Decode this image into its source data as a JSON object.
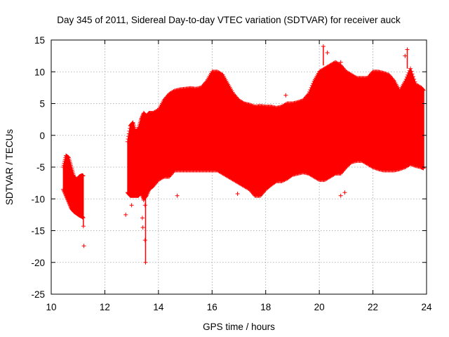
{
  "chart_data": {
    "type": "scatter",
    "title": "Day 345 of 2011, Sidereal Day-to-day VTEC variation (SDTVAR) for receiver auck",
    "xlabel": "GPS time / hours",
    "ylabel": "SDTVAR / TECUs",
    "xlim": [
      10,
      24
    ],
    "ylim": [
      -25,
      15
    ],
    "xticks": [
      10,
      12,
      14,
      16,
      18,
      20,
      22,
      24
    ],
    "yticks": [
      -25,
      -20,
      -15,
      -10,
      -5,
      0,
      5,
      10,
      15
    ],
    "xtick_labels": [
      "10",
      "12",
      "14",
      "16",
      "18",
      "20",
      "22",
      "24"
    ],
    "ytick_labels": [
      "-25",
      "-20",
      "-15",
      "-10",
      "-5",
      "0",
      "5",
      "10",
      "15"
    ],
    "grid": true,
    "marker": "+",
    "color": "#ff0000",
    "series": [
      {
        "name": "SDTVAR",
        "envelope": {
          "x": [
            10.45,
            10.55,
            10.65,
            10.75,
            10.85,
            10.95,
            11.05,
            11.15,
            11.2
          ],
          "upper": [
            -5.0,
            -3.2,
            -3.5,
            -5.0,
            -6.5,
            -7.0,
            -6.5,
            -6.3,
            -6.4
          ],
          "lower": [
            -8.5,
            -9.5,
            -10.5,
            -11.5,
            -12.0,
            -12.3,
            -12.6,
            -12.8,
            -13.0
          ]
        },
        "envelope2": {
          "x": [
            12.85,
            12.95,
            13.05,
            13.15,
            13.25,
            13.35,
            13.45,
            13.55,
            13.65,
            13.8,
            14.0,
            14.2,
            14.4,
            14.6,
            14.8,
            15.0,
            15.2,
            15.4,
            15.6,
            15.8,
            16.0,
            16.2,
            16.4,
            16.6,
            16.8,
            17.0,
            17.2,
            17.4,
            17.6,
            17.8,
            18.0,
            18.2,
            18.4,
            18.6,
            18.8,
            19.0,
            19.2,
            19.4,
            19.6,
            19.8,
            20.0,
            20.2,
            20.4,
            20.6,
            20.8,
            21.0,
            21.2,
            21.4,
            21.6,
            21.8,
            22.0,
            22.2,
            22.4,
            22.6,
            22.8,
            23.0,
            23.2,
            23.4,
            23.6,
            23.8,
            23.9
          ],
          "upper": [
            -1.0,
            1.5,
            2.0,
            0.5,
            1.0,
            2.5,
            3.5,
            3.0,
            3.5,
            3.5,
            4.0,
            5.5,
            6.5,
            7.0,
            7.2,
            7.3,
            7.4,
            7.3,
            7.5,
            8.5,
            10.0,
            10.0,
            9.5,
            8.0,
            6.5,
            5.5,
            5.0,
            4.8,
            4.5,
            4.6,
            4.5,
            4.5,
            4.3,
            4.5,
            5.0,
            5.0,
            5.2,
            5.5,
            6.5,
            8.5,
            10.0,
            10.5,
            11.0,
            11.5,
            11.0,
            10.0,
            9.5,
            9.0,
            9.0,
            9.0,
            10.0,
            10.0,
            9.8,
            9.5,
            8.5,
            7.0,
            8.5,
            10.5,
            8.0,
            7.5,
            7.0
          ],
          "lower": [
            -9.0,
            -9.5,
            -9.5,
            -9.5,
            -9.5,
            -9.0,
            -10.0,
            -9.5,
            -8.5,
            -8.0,
            -7.0,
            -6.5,
            -6.5,
            -5.5,
            -5.5,
            -5.5,
            -5.5,
            -5.5,
            -5.5,
            -5.5,
            -5.5,
            -5.5,
            -6.0,
            -6.5,
            -7.0,
            -7.5,
            -8.0,
            -8.5,
            -9.5,
            -9.5,
            -8.5,
            -7.8,
            -7.2,
            -7.2,
            -6.8,
            -6.2,
            -6.0,
            -5.8,
            -6.0,
            -6.5,
            -7.0,
            -7.0,
            -6.5,
            -6.0,
            -6.0,
            -5.0,
            -4.2,
            -4.0,
            -4.0,
            -4.5,
            -5.0,
            -5.3,
            -5.5,
            -5.5,
            -5.5,
            -5.3,
            -5.0,
            -4.5,
            -4.8,
            -5.0,
            -5.2
          ]
        },
        "outliers": [
          {
            "x": 11.22,
            "y": -17.4
          },
          {
            "x": 11.2,
            "y": -14.3
          },
          {
            "x": 12.78,
            "y": -12.5
          },
          {
            "x": 13.42,
            "y": -14.5
          },
          {
            "x": 13.52,
            "y": -20.0
          },
          {
            "x": 13.5,
            "y": -16.5
          },
          {
            "x": 13.45,
            "y": -10.2
          },
          {
            "x": 13.5,
            "y": -11.0
          },
          {
            "x": 14.7,
            "y": -9.5
          },
          {
            "x": 16.95,
            "y": -9.2
          },
          {
            "x": 18.75,
            "y": 6.3
          },
          {
            "x": 20.15,
            "y": 14.0
          },
          {
            "x": 20.3,
            "y": 13.0
          },
          {
            "x": 20.8,
            "y": 11.5
          },
          {
            "x": 23.28,
            "y": 13.5
          },
          {
            "x": 23.2,
            "y": 12.5
          },
          {
            "x": 20.8,
            "y": -9.5
          },
          {
            "x": 20.95,
            "y": -9.0
          },
          {
            "x": 13.0,
            "y": -11.0
          },
          {
            "x": 13.4,
            "y": -13.0
          }
        ]
      }
    ]
  }
}
